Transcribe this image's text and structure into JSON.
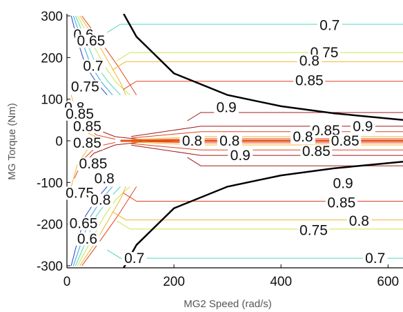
{
  "chart_data": {
    "type": "contour",
    "xlabel": "MG2 Speed (rad/s)",
    "ylabel": "MG Torque (Nm)",
    "xlim": [
      0,
      628
    ],
    "ylim": [
      -305,
      305
    ],
    "xticks": [
      0,
      200,
      400,
      600
    ],
    "yticks": [
      300,
      200,
      100,
      0,
      -100,
      -200,
      -300
    ],
    "grid": false,
    "legend": "none",
    "levels": [
      {
        "level": 0.6,
        "color": "#1f3fd0"
      },
      {
        "level": 0.65,
        "color": "#2aa6d8"
      },
      {
        "level": 0.7,
        "color": "#4fd6c0"
      },
      {
        "level": 0.75,
        "color": "#c8e64a"
      },
      {
        "level": 0.8,
        "color": "#f0b530"
      },
      {
        "level": 0.85,
        "color": "#e04020"
      },
      {
        "level": 0.9,
        "color": "#a01818"
      }
    ],
    "contours": [
      {
        "level": 0.7,
        "points": [
          [
            100,
            280
          ],
          [
            628,
            280
          ]
        ]
      },
      {
        "level": 0.75,
        "points": [
          [
            118,
            212
          ],
          [
            628,
            212
          ]
        ]
      },
      {
        "level": 0.8,
        "points": [
          [
            110,
            190
          ],
          [
            628,
            190
          ]
        ]
      },
      {
        "level": 0.85,
        "points": [
          [
            130,
            143
          ],
          [
            628,
            143
          ]
        ]
      },
      {
        "level": 0.9,
        "points": [
          [
            250,
            68
          ],
          [
            628,
            68
          ]
        ]
      },
      {
        "level": 0.9,
        "points": [
          [
            250,
            -60
          ],
          [
            628,
            -60
          ]
        ]
      },
      {
        "level": 0.85,
        "points": [
          [
            130,
            -145
          ],
          [
            628,
            -145
          ]
        ]
      },
      {
        "level": 0.8,
        "points": [
          [
            110,
            -190
          ],
          [
            628,
            -190
          ]
        ]
      },
      {
        "level": 0.75,
        "points": [
          [
            118,
            -212
          ],
          [
            628,
            -212
          ]
        ]
      },
      {
        "level": 0.7,
        "points": [
          [
            100,
            -282
          ],
          [
            628,
            -282
          ]
        ]
      }
    ],
    "max_torque_envelope": {
      "upper": [
        [
          106,
          305
        ],
        [
          130,
          250
        ],
        [
          200,
          162
        ],
        [
          300,
          110
        ],
        [
          400,
          83
        ],
        [
          500,
          66
        ],
        [
          628,
          50
        ]
      ],
      "lower": [
        [
          106,
          -305
        ],
        [
          130,
          -250
        ],
        [
          200,
          -162
        ],
        [
          300,
          -110
        ],
        [
          400,
          -83
        ],
        [
          500,
          -66
        ],
        [
          628,
          -50
        ]
      ]
    },
    "contour_labels": [
      {
        "text": "0.7",
        "x": 491,
        "y": 278
      },
      {
        "text": "0.75",
        "x": 481,
        "y": 212
      },
      {
        "text": "0.8",
        "x": 453,
        "y": 192
      },
      {
        "text": "0.85",
        "x": 453,
        "y": 145
      },
      {
        "text": "0.9",
        "x": 298,
        "y": 80
      },
      {
        "text": "0.85",
        "x": 484,
        "y": 25
      },
      {
        "text": "0.9",
        "x": 553,
        "y": 35
      },
      {
        "text": "0.8",
        "x": 234,
        "y": 0
      },
      {
        "text": "0.8",
        "x": 304,
        "y": 0
      },
      {
        "text": "0.8",
        "x": 441,
        "y": 10
      },
      {
        "text": "0.85",
        "x": 520,
        "y": 0
      },
      {
        "text": "0.9",
        "x": 324,
        "y": -35
      },
      {
        "text": "0.85",
        "x": 466,
        "y": -25
      },
      {
        "text": "0.9",
        "x": 516,
        "y": -102
      },
      {
        "text": "0.85",
        "x": 513,
        "y": -148
      },
      {
        "text": "0.8",
        "x": 546,
        "y": -192
      },
      {
        "text": "0.75",
        "x": 461,
        "y": -215
      },
      {
        "text": "0.7",
        "x": 576,
        "y": -282
      },
      {
        "text": "0.6",
        "x": 31,
        "y": 255
      },
      {
        "text": "0.65",
        "x": 45,
        "y": 240
      },
      {
        "text": "0.7",
        "x": 49,
        "y": 180
      },
      {
        "text": "0.75",
        "x": 34,
        "y": 130
      },
      {
        "text": "0.8",
        "x": 14,
        "y": 80
      },
      {
        "text": "0.85",
        "x": 24,
        "y": 65
      },
      {
        "text": "0.85",
        "x": 38,
        "y": 35
      },
      {
        "text": "0.85",
        "x": 38,
        "y": -5
      },
      {
        "text": "0.85",
        "x": 49,
        "y": -55
      },
      {
        "text": "0.8",
        "x": 70,
        "y": -90
      },
      {
        "text": "0.75",
        "x": 24,
        "y": -125
      },
      {
        "text": "0.8",
        "x": 63,
        "y": -142
      },
      {
        "text": "0.65",
        "x": 31,
        "y": -198
      },
      {
        "text": "0.6",
        "x": 38,
        "y": -235
      },
      {
        "text": "0.7",
        "x": 126,
        "y": -282
      }
    ]
  }
}
